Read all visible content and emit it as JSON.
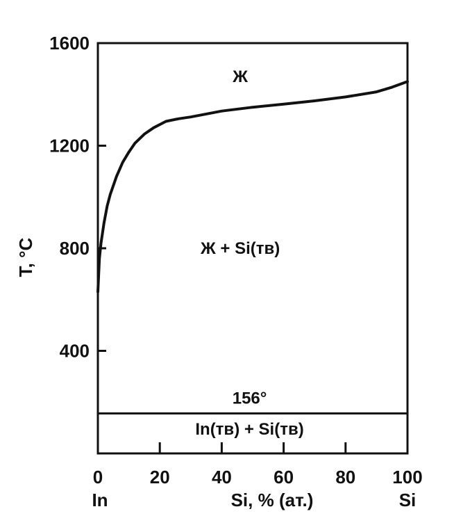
{
  "chart_data": {
    "type": "line",
    "title": "",
    "xlabel": "Si, % (ат.)",
    "ylabel": "T, °C",
    "xlim": [
      0,
      100
    ],
    "ylim": [
      0,
      1600
    ],
    "x_ticks": [
      0,
      20,
      40,
      60,
      80,
      100
    ],
    "y_ticks": [
      400,
      800,
      1200,
      1600
    ],
    "x_tick_labels": [
      "0",
      "20",
      "40",
      "60",
      "80",
      "100"
    ],
    "y_tick_labels": [
      "400",
      "800",
      "1200",
      "1600"
    ],
    "x_end_labels": {
      "left": "In",
      "right": "Si"
    },
    "grid": false,
    "series": [
      {
        "points": [
          [
            0,
            630
          ],
          [
            0.5,
            760
          ],
          [
            1,
            820
          ],
          [
            2,
            900
          ],
          [
            3,
            965
          ],
          [
            4,
            1010
          ],
          [
            6,
            1080
          ],
          [
            8,
            1135
          ],
          [
            10,
            1175
          ],
          [
            12,
            1210
          ],
          [
            15,
            1245
          ],
          [
            18,
            1270
          ],
          [
            22,
            1295
          ],
          [
            26,
            1305
          ],
          [
            30,
            1312
          ],
          [
            40,
            1335
          ],
          [
            50,
            1350
          ],
          [
            60,
            1362
          ],
          [
            70,
            1375
          ],
          [
            80,
            1390
          ],
          [
            90,
            1410
          ],
          [
            95,
            1428
          ],
          [
            100,
            1450
          ]
        ]
      },
      {
        "points": [
          [
            0,
            156
          ],
          [
            100,
            156
          ]
        ]
      }
    ],
    "annotations": [
      {
        "text": "Ж",
        "x": 46,
        "y": 1470
      },
      {
        "text": "Ж + Si(тв)",
        "x": 46,
        "y": 800
      },
      {
        "text": "156°",
        "x": 49,
        "y": 215
      },
      {
        "text": "In(тв) + Si(тв)",
        "x": 49,
        "y": 95
      }
    ]
  }
}
